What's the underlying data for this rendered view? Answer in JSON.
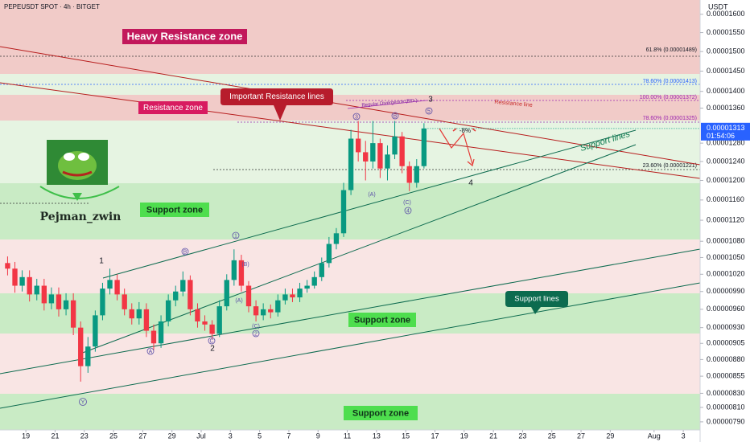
{
  "chart_data": {
    "type": "candlestick",
    "title": "PEPEUSDT SPOT · 4h · BITGET",
    "currency": "USDT",
    "log_scale": true,
    "up_color": "#089981",
    "down_color": "#f23645",
    "x": [
      -1.5,
      -1,
      -0.5,
      0,
      0.5,
      1,
      1.5,
      2,
      2.5,
      3,
      3.5,
      4,
      4.5,
      5,
      5.5,
      6,
      6.5,
      7,
      7.5,
      8,
      8.5,
      9,
      9.5,
      10,
      10.5,
      11,
      11.5,
      12,
      12.5,
      13,
      13.5,
      14,
      14.5,
      15,
      15.5,
      16,
      16.5,
      17,
      17.5,
      18,
      18.5,
      19,
      19.5,
      20,
      20.5,
      21,
      21.5,
      22,
      22.5,
      23,
      23.5,
      24,
      24.5,
      25,
      25.5,
      26,
      26.5,
      27
    ],
    "open": [
      1.04e-05,
      1.03e-05,
      1e-05,
      1.015e-05,
      9.85e-06,
      1e-05,
      9.7e-06,
      9.85e-06,
      9.6e-06,
      9.75e-06,
      9.3e-06,
      8.7e-06,
      9e-06,
      9.5e-06,
      9.95e-06,
      1.01e-05,
      9.85e-06,
      9.6e-06,
      9.45e-06,
      9.6e-06,
      9.25e-06,
      9.05e-06,
      9.4e-06,
      9.75e-06,
      9.9e-06,
      1.01e-05,
      9.6e-06,
      9.4e-06,
      9.35e-06,
      9.2e-06,
      9.65e-06,
      1.01e-05,
      1.045e-05,
      1e-05,
      9.65e-06,
      9.5e-06,
      9.6e-06,
      9.55e-06,
      9.75e-06,
      9.85e-06,
      9.8e-06,
      9.95e-06,
      1e-05,
      1.015e-05,
      1.04e-05,
      1.075e-05,
      1.095e-05,
      1.18e-05,
      1.29e-05,
      1.26e-05,
      1.24e-05,
      1.28e-05,
      1.225e-05,
      1.255e-05,
      1.295e-05,
      1.23e-05,
      1.195e-05,
      1.23e-05
    ],
    "high": [
      1.052e-05,
      1.042e-05,
      1.027e-05,
      1.027e-05,
      1.012e-05,
      1.012e-05,
      9.97e-06,
      9.97e-06,
      9.87e-06,
      9.87e-06,
      9.4e-06,
      9.15e-06,
      9.58e-06,
      1.005e-05,
      1.03e-05,
      1.02e-05,
      9.95e-06,
      9.7e-06,
      9.72e-06,
      9.7e-06,
      9.35e-06,
      9.5e-06,
      9.85e-06,
      1e-05,
      1.025e-05,
      1.018e-05,
      9.7e-06,
      9.5e-06,
      9.42e-06,
      9.75e-06,
      1.02e-05,
      1.065e-05,
      1.055e-05,
      1.008e-05,
      9.75e-06,
      9.7e-06,
      9.68e-06,
      9.85e-06,
      9.95e-06,
      9.95e-06,
      1.005e-05,
      1.01e-05,
      1.025e-05,
      1.05e-05,
      1.088e-05,
      1.105e-05,
      1.195e-05,
      1.31e-05,
      1.33e-05,
      1.285e-05,
      1.33e-05,
      1.29e-05,
      1.275e-05,
      1.33e-05,
      1.305e-05,
      1.24e-05,
      1.245e-05,
      1.325e-05
    ],
    "low": [
      1.018e-05,
      9.88e-06,
      9.9e-06,
      9.73e-06,
      9.75e-06,
      9.58e-06,
      9.6e-06,
      9.48e-06,
      9.5e-06,
      9.18e-06,
      8.47e-06,
      8.6e-06,
      8.92e-06,
      9.42e-06,
      9.85e-06,
      9.75e-06,
      9.5e-06,
      9.35e-06,
      9.35e-06,
      9.15e-06,
      8.95e-06,
      8.98e-06,
      9.32e-06,
      9.65e-06,
      9.82e-06,
      9.5e-06,
      9.3e-06,
      9.25e-06,
      9.12e-06,
      9.15e-06,
      9.58e-06,
      1e-05,
      9.9e-06,
      9.55e-06,
      9.4e-06,
      9.42e-06,
      9.45e-06,
      9.48e-06,
      9.68e-06,
      9.72e-06,
      9.72e-06,
      9.88e-06,
      9.95e-06,
      1.008e-05,
      1.032e-05,
      1.065e-05,
      1.088e-05,
      1.17e-05,
      1.24e-05,
      1.2e-05,
      1.225e-05,
      1.205e-05,
      1.2e-05,
      1.245e-05,
      1.215e-05,
      1.178e-05,
      1.185e-05,
      1.225e-05
    ],
    "close": [
      1.03e-05,
      1e-05,
      1.015e-05,
      9.85e-06,
      1e-05,
      9.7e-06,
      9.85e-06,
      9.6e-06,
      9.75e-06,
      9.3e-06,
      8.7e-06,
      9e-06,
      9.5e-06,
      9.95e-06,
      1.01e-05,
      9.85e-06,
      9.6e-06,
      9.45e-06,
      9.6e-06,
      9.25e-06,
      9.05e-06,
      9.4e-06,
      9.75e-06,
      9.9e-06,
      1.01e-05,
      9.6e-06,
      9.4e-06,
      9.35e-06,
      9.2e-06,
      9.65e-06,
      1.01e-05,
      1.045e-05,
      1e-05,
      9.65e-06,
      9.5e-06,
      9.6e-06,
      9.55e-06,
      9.75e-06,
      9.85e-06,
      9.8e-06,
      9.95e-06,
      1e-05,
      1.015e-05,
      1.04e-05,
      1.075e-05,
      1.095e-05,
      1.18e-05,
      1.29e-05,
      1.26e-05,
      1.24e-05,
      1.28e-05,
      1.225e-05,
      1.255e-05,
      1.295e-05,
      1.23e-05,
      1.195e-05,
      1.23e-05,
      1.313e-05
    ],
    "ylim": [
      7.79e-06,
      1.64e-05
    ],
    "yticks": [
      {
        "value": 1.6e-05,
        "label": "0.00001600"
      },
      {
        "value": 1.55e-05,
        "label": "0.00001550"
      },
      {
        "value": 1.5e-05,
        "label": "0.00001500"
      },
      {
        "value": 1.45e-05,
        "label": "0.00001450"
      },
      {
        "value": 1.4e-05,
        "label": "0.00001400"
      },
      {
        "value": 1.36e-05,
        "label": "0.00001360"
      },
      {
        "value": 1.28e-05,
        "label": "0.00001280"
      },
      {
        "value": 1.24e-05,
        "label": "0.00001240"
      },
      {
        "value": 1.2e-05,
        "label": "0.00001200"
      },
      {
        "value": 1.16e-05,
        "label": "0.00001160"
      },
      {
        "value": 1.12e-05,
        "label": "0.00001120"
      },
      {
        "value": 1.08e-05,
        "label": "0.00001080"
      },
      {
        "value": 1.05e-05,
        "label": "0.00001050"
      },
      {
        "value": 1.02e-05,
        "label": "0.00001020"
      },
      {
        "value": 9.9e-06,
        "label": "0.00000990"
      },
      {
        "value": 9.6e-06,
        "label": "0.00000960"
      },
      {
        "value": 9.3e-06,
        "label": "0.00000930"
      },
      {
        "value": 9.05e-06,
        "label": "0.00000905"
      },
      {
        "value": 8.8e-06,
        "label": "0.00000880"
      },
      {
        "value": 8.55e-06,
        "label": "0.00000855"
      },
      {
        "value": 8.3e-06,
        "label": "0.00000830"
      },
      {
        "value": 8.1e-06,
        "label": "0.00000810"
      },
      {
        "value": 7.9e-06,
        "label": "0.00000790"
      }
    ],
    "xlim": [
      -1.77,
      46.15
    ],
    "xticks": [
      {
        "value": 0,
        "label": "19"
      },
      {
        "value": 2,
        "label": "21"
      },
      {
        "value": 4,
        "label": "23"
      },
      {
        "value": 6,
        "label": "25"
      },
      {
        "value": 8,
        "label": "27"
      },
      {
        "value": 10,
        "label": "29"
      },
      {
        "value": 12,
        "label": "Jul"
      },
      {
        "value": 14,
        "label": "3"
      },
      {
        "value": 16,
        "label": "5"
      },
      {
        "value": 18,
        "label": "7"
      },
      {
        "value": 20,
        "label": "9"
      },
      {
        "value": 22,
        "label": "11"
      },
      {
        "value": 24,
        "label": "13"
      },
      {
        "value": 26,
        "label": "15"
      },
      {
        "value": 28,
        "label": "17"
      },
      {
        "value": 30,
        "label": "19"
      },
      {
        "value": 32,
        "label": "21"
      },
      {
        "value": 34,
        "label": "23"
      },
      {
        "value": 36,
        "label": "25"
      },
      {
        "value": 38,
        "label": "27"
      },
      {
        "value": 40,
        "label": "29"
      },
      {
        "value": 43,
        "label": "Aug"
      },
      {
        "value": 45,
        "label": "3"
      }
    ],
    "last_price": "0.00001313",
    "countdown": "01:54:06",
    "annotations": {
      "heavy_resistance": "Heavy Resistance zone",
      "resistance_zone": "Resistance zone",
      "important_resistance": "Important Resistance lines",
      "support_zones": [
        "Support zone",
        "Support zone",
        "Support zone"
      ],
      "support_lines": "Support lines",
      "support_lines_callout": "Support lines",
      "resistance_line": "Resistance line",
      "divergence": "Regular Divergence (RD-)",
      "drop": "-8%",
      "author": "Pejman_zwin"
    },
    "fib_levels": [
      "61.8% (0.00001489)",
      "78.60% (0.00001413)",
      "100.00% (0.00001372)",
      "78.60% (0.00001325)",
      "23.60% (0.00001221)"
    ],
    "waves": [
      "1",
      "2",
      "3",
      "4"
    ],
    "circled_waves": [
      "Y",
      "A",
      "B",
      "C",
      "1",
      "2",
      "3",
      "B",
      "5",
      "4"
    ],
    "minor_waves": [
      "(A)",
      "(B)",
      "(C)",
      "(A)",
      "(C)"
    ]
  }
}
